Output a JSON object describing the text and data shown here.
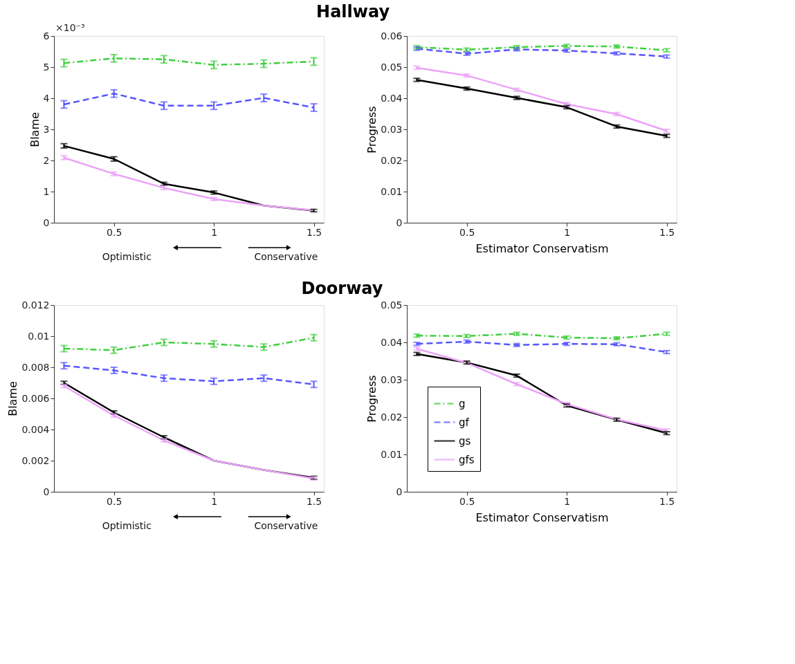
{
  "chart_data": [
    {
      "type": "line",
      "title": "Hallway",
      "ylabel": "Blame",
      "x": [
        0.25,
        0.5,
        0.75,
        1,
        1.25,
        1.5
      ],
      "xlim": [
        0.2,
        1.55
      ],
      "xticks": [
        0.5,
        1,
        1.5
      ],
      "ylim": [
        0,
        6
      ],
      "yticks": [
        0,
        1,
        2,
        3,
        4,
        5,
        6
      ],
      "grid": false,
      "legend": false,
      "annotations": [
        "×10⁻³",
        "Optimistic",
        "Conservative"
      ],
      "series": [
        {
          "color": "#3ecf3e",
          "line_style": "dashdot",
          "values": [
            5.13,
            5.28,
            5.25,
            5.07,
            5.11,
            5.18
          ],
          "errors": [
            0.12,
            0.12,
            0.12,
            0.12,
            0.12,
            0.12
          ]
        },
        {
          "color": "#5555ff",
          "line_style": "dashed",
          "values": [
            3.8,
            4.15,
            3.76,
            3.76,
            4.01,
            3.7
          ],
          "errors": [
            0.12,
            0.12,
            0.12,
            0.12,
            0.12,
            0.12
          ]
        },
        {
          "color": "#000000",
          "line_style": "solid",
          "values": [
            2.47,
            2.05,
            1.25,
            0.97,
            0.55,
            0.39
          ],
          "errors": [
            0.07,
            0.07,
            0.05,
            0.05,
            null,
            0.04
          ]
        },
        {
          "color": "#eba2f8",
          "line_style": "solid",
          "values": [
            2.09,
            1.57,
            1.12,
            0.76,
            0.55,
            0.4
          ],
          "errors": [
            0.06,
            0.06,
            0.06,
            0.05,
            null,
            null
          ]
        }
      ]
    },
    {
      "type": "line",
      "xlabel": "Estimator Conservatism",
      "ylabel": "Progress",
      "x": [
        0.25,
        0.5,
        0.75,
        1,
        1.25,
        1.5
      ],
      "xlim": [
        0.2,
        1.55
      ],
      "xticks": [
        0.5,
        1,
        1.5
      ],
      "ylim": [
        0,
        0.06
      ],
      "yticks": [
        0,
        0.01,
        0.02,
        0.03,
        0.04,
        0.05,
        0.06
      ],
      "grid": false,
      "legend": false,
      "series": [
        {
          "color": "#3ecf3e",
          "line_style": "dashdot",
          "values": [
            0.0564,
            0.0556,
            0.0564,
            0.0568,
            0.0566,
            0.0554
          ],
          "errors": [
            0.0005,
            0.0005,
            0.0005,
            0.0005,
            0.0005,
            0.0005
          ]
        },
        {
          "color": "#5555ff",
          "line_style": "dashed",
          "values": [
            0.0559,
            0.0543,
            0.0557,
            0.0553,
            0.0544,
            0.0534
          ],
          "errors": [
            0.0005,
            0.0005,
            0.0005,
            0.0005,
            0.0005,
            0.0005
          ]
        },
        {
          "color": "#000000",
          "line_style": "solid",
          "values": [
            0.0459,
            0.0431,
            0.0401,
            0.0371,
            0.0309,
            0.0279
          ],
          "errors": [
            0.0005,
            0.0005,
            0.0005,
            0.0005,
            0.0005,
            0.0005
          ]
        },
        {
          "color": "#eba2f8",
          "line_style": "solid",
          "values": [
            0.0498,
            0.0473,
            0.0427,
            0.0381,
            0.0349,
            0.0295
          ],
          "errors": [
            0.0005,
            0.0005,
            0.0005,
            0.0005,
            0.0005,
            0.0005
          ]
        }
      ]
    },
    {
      "type": "line",
      "title": "Doorway",
      "ylabel": "Blame",
      "x": [
        0.25,
        0.5,
        0.75,
        1,
        1.25,
        1.5
      ],
      "xlim": [
        0.2,
        1.55
      ],
      "xticks": [
        0.5,
        1,
        1.5
      ],
      "ylim": [
        0,
        0.012
      ],
      "yticks": [
        0,
        0.002,
        0.004,
        0.006,
        0.008,
        0.01,
        0.012
      ],
      "grid": false,
      "legend": false,
      "annotations": [
        "Optimistic",
        "Conservative"
      ],
      "series": [
        {
          "color": "#3ecf3e",
          "line_style": "dashdot",
          "values": [
            0.0092,
            0.0091,
            0.0096,
            0.0095,
            0.0093,
            0.0099
          ],
          "errors": [
            0.0002,
            0.0002,
            0.0002,
            0.0002,
            0.0002,
            0.0002
          ]
        },
        {
          "color": "#5555ff",
          "line_style": "dashed",
          "values": [
            0.0081,
            0.0078,
            0.0073,
            0.0071,
            0.0073,
            0.0069
          ],
          "errors": [
            0.0002,
            0.0002,
            0.0002,
            0.0002,
            0.0002,
            0.0002
          ]
        },
        {
          "color": "#000000",
          "line_style": "solid",
          "values": [
            0.007,
            0.0051,
            0.0035,
            0.002,
            0.0014,
            0.0009
          ],
          "errors": [
            0.0001,
            0.0001,
            0.0001,
            null,
            null,
            0.0001
          ]
        },
        {
          "color": "#eba2f8",
          "line_style": "solid",
          "values": [
            0.0068,
            0.0049,
            0.0033,
            0.002,
            0.0014,
            0.00085
          ],
          "errors": [
            0.0001,
            0.0001,
            0.0001,
            null,
            null,
            0.0001
          ]
        }
      ]
    },
    {
      "type": "line",
      "xlabel": "Estimator Conservatism",
      "ylabel": "Progress",
      "x": [
        0.25,
        0.5,
        0.75,
        1,
        1.25,
        1.5
      ],
      "xlim": [
        0.2,
        1.55
      ],
      "xticks": [
        0.5,
        1,
        1.5
      ],
      "ylim": [
        0,
        0.05
      ],
      "yticks": [
        0,
        0.01,
        0.02,
        0.03,
        0.04,
        0.05
      ],
      "grid": false,
      "legend": "bottom left",
      "series": [
        {
          "name": "g",
          "color": "#3ecf3e",
          "line_style": "dashdot",
          "values": [
            0.0418,
            0.0417,
            0.0423,
            0.0413,
            0.0411,
            0.0423
          ],
          "errors": [
            0.0004,
            0.0004,
            0.0004,
            0.0004,
            0.0004,
            0.0004
          ]
        },
        {
          "name": "gf",
          "color": "#5555ff",
          "line_style": "dashed",
          "values": [
            0.0396,
            0.0402,
            0.0393,
            0.0396,
            0.0395,
            0.0374
          ],
          "errors": [
            0.0004,
            0.0004,
            0.0004,
            0.0004,
            0.0004,
            0.0004
          ]
        },
        {
          "name": "gs",
          "color": "#000000",
          "line_style": "solid",
          "values": [
            0.0369,
            0.0346,
            0.0311,
            0.0231,
            0.0193,
            0.0157
          ],
          "errors": [
            0.0004,
            0.0004,
            0.0004,
            0.0004,
            0.0004,
            0.0004
          ]
        },
        {
          "name": "gfs",
          "color": "#eba2f8",
          "line_style": "solid",
          "values": [
            0.0383,
            0.0345,
            0.0288,
            0.0235,
            0.0194,
            0.0164
          ],
          "errors": [
            0.0004,
            null,
            0.0004,
            0.0004,
            null,
            0.0004
          ]
        }
      ]
    }
  ]
}
